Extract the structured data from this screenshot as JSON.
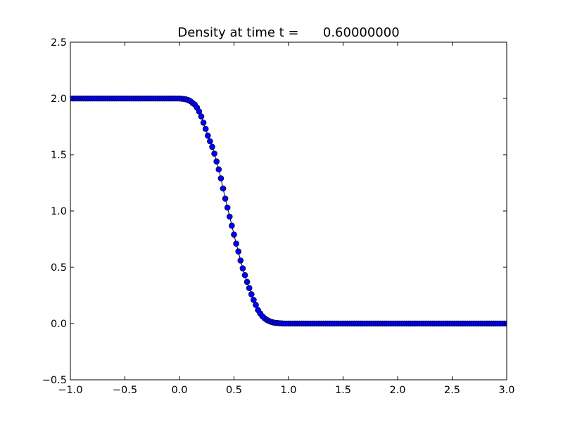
{
  "chart_data": {
    "type": "line",
    "title": "Density at time t =      0.60000000",
    "xlabel": "",
    "ylabel": "",
    "xlim": [
      -1.0,
      3.0
    ],
    "ylim": [
      -0.5,
      2.5
    ],
    "x_ticks": [
      "−1.0",
      "−0.5",
      "0.0",
      "0.5",
      "1.0",
      "1.5",
      "2.0",
      "2.5",
      "3.0"
    ],
    "y_ticks": [
      "−0.5",
      "0.0",
      "0.5",
      "1.0",
      "1.5",
      "2.0",
      "2.5"
    ],
    "grid": false,
    "legend": "none",
    "marker": "circle",
    "colors": {
      "line": "#000000",
      "marker_fill": "#0000ff",
      "marker_edge": "#000000"
    },
    "series": [
      {
        "x": [
          -1.0,
          -0.98,
          -0.96,
          -0.94,
          -0.92,
          -0.9,
          -0.88,
          -0.86,
          -0.84,
          -0.82,
          -0.8,
          -0.78,
          -0.76,
          -0.74,
          -0.72,
          -0.7,
          -0.68,
          -0.66,
          -0.64,
          -0.62,
          -0.6,
          -0.58,
          -0.56,
          -0.54,
          -0.52,
          -0.5,
          -0.48,
          -0.46,
          -0.44,
          -0.42,
          -0.4,
          -0.38,
          -0.36,
          -0.34,
          -0.32,
          -0.3,
          -0.28,
          -0.26,
          -0.24,
          -0.22,
          -0.2,
          -0.18,
          -0.16,
          -0.14,
          -0.12,
          -0.1,
          -0.08,
          -0.06,
          -0.04,
          -0.02,
          0.0,
          0.02,
          0.04,
          0.06,
          0.08,
          0.1,
          0.12,
          0.14,
          0.16,
          0.18,
          0.2,
          0.22,
          0.24,
          0.26,
          0.28,
          0.3,
          0.32,
          0.34,
          0.36,
          0.38,
          0.4,
          0.42,
          0.44,
          0.46,
          0.48,
          0.5,
          0.52,
          0.54,
          0.56,
          0.58,
          0.6,
          0.62,
          0.64,
          0.66,
          0.68,
          0.7,
          0.72,
          0.74,
          0.76,
          0.78,
          0.8,
          0.82,
          0.84,
          0.86,
          0.88,
          0.9,
          0.92,
          0.94,
          0.96,
          0.98,
          1.0,
          1.02,
          1.04,
          1.06,
          1.08,
          1.1,
          1.12,
          1.14,
          1.16,
          1.18,
          1.2,
          1.22,
          1.24,
          1.26,
          1.28,
          1.3,
          1.32,
          1.34,
          1.36,
          1.38,
          1.4,
          1.42,
          1.44,
          1.46,
          1.48,
          1.5,
          1.52,
          1.54,
          1.56,
          1.58,
          1.6,
          1.62,
          1.64,
          1.66,
          1.68,
          1.7,
          1.72,
          1.74,
          1.76,
          1.78,
          1.8,
          1.82,
          1.84,
          1.86,
          1.88,
          1.9,
          1.92,
          1.94,
          1.96,
          1.98,
          2.0,
          2.02,
          2.04,
          2.06,
          2.08,
          2.1,
          2.12,
          2.14,
          2.16,
          2.18,
          2.2,
          2.22,
          2.24,
          2.26,
          2.28,
          2.3,
          2.32,
          2.34,
          2.36,
          2.38,
          2.4,
          2.42,
          2.44,
          2.46,
          2.48,
          2.5,
          2.52,
          2.54,
          2.56,
          2.58,
          2.6,
          2.62,
          2.64,
          2.66,
          2.68,
          2.7,
          2.72,
          2.74,
          2.76,
          2.78,
          2.8,
          2.82,
          2.84,
          2.86,
          2.88,
          2.9,
          2.92,
          2.94,
          2.96,
          2.98,
          3.0
        ],
        "y": [
          2.0,
          2.0,
          2.0,
          2.0,
          2.0,
          2.0,
          2.0,
          2.0,
          2.0,
          2.0,
          2.0,
          2.0,
          2.0,
          2.0,
          2.0,
          2.0,
          2.0,
          2.0,
          2.0,
          2.0,
          2.0,
          2.0,
          2.0,
          2.0,
          2.0,
          2.0,
          2.0,
          2.0,
          2.0,
          2.0,
          2.0,
          2.0,
          2.0,
          2.0,
          2.0,
          2.0,
          2.0,
          2.0,
          2.0,
          2.0,
          2.0,
          2.0,
          2.0,
          2.0,
          2.0,
          2.0,
          2.0,
          2.0,
          2.0,
          2.0,
          2.0,
          1.998,
          1.996,
          1.992,
          1.986,
          1.976,
          1.96,
          1.946,
          1.92,
          1.885,
          1.84,
          1.785,
          1.73,
          1.67,
          1.62,
          1.57,
          1.51,
          1.44,
          1.37,
          1.29,
          1.2,
          1.11,
          1.03,
          0.95,
          0.87,
          0.79,
          0.71,
          0.64,
          0.56,
          0.49,
          0.43,
          0.37,
          0.315,
          0.26,
          0.21,
          0.165,
          0.12,
          0.09,
          0.065,
          0.047,
          0.033,
          0.023,
          0.015,
          0.01,
          0.006,
          0.004,
          0.002,
          0.001,
          0.0,
          0.0,
          0.0,
          0.0,
          0.0,
          0.0,
          0.0,
          0.0,
          0.0,
          0.0,
          0.0,
          0.0,
          0.0,
          0.0,
          0.0,
          0.0,
          0.0,
          0.0,
          0.0,
          0.0,
          0.0,
          0.0,
          0.0,
          0.0,
          0.0,
          0.0,
          0.0,
          0.0,
          0.0,
          0.0,
          0.0,
          0.0,
          0.0,
          0.0,
          0.0,
          0.0,
          0.0,
          0.0,
          0.0,
          0.0,
          0.0,
          0.0,
          0.0,
          0.0,
          0.0,
          0.0,
          0.0,
          0.0,
          0.0,
          0.0,
          0.0,
          0.0,
          0.0,
          0.0,
          0.0,
          0.0,
          0.0,
          0.0,
          0.0,
          0.0,
          0.0,
          0.0,
          0.0,
          0.0,
          0.0,
          0.0,
          0.0,
          0.0,
          0.0,
          0.0,
          0.0,
          0.0,
          0.0,
          0.0,
          0.0,
          0.0,
          0.0,
          0.0,
          0.0,
          0.0,
          0.0,
          0.0,
          0.0,
          0.0,
          0.0,
          0.0,
          0.0,
          0.0,
          0.0,
          0.0,
          0.0,
          0.0,
          0.0,
          0.0,
          0.0,
          0.0,
          0.0,
          0.0,
          0.0,
          0.0,
          0.0,
          0.0,
          0.0
        ]
      }
    ]
  }
}
